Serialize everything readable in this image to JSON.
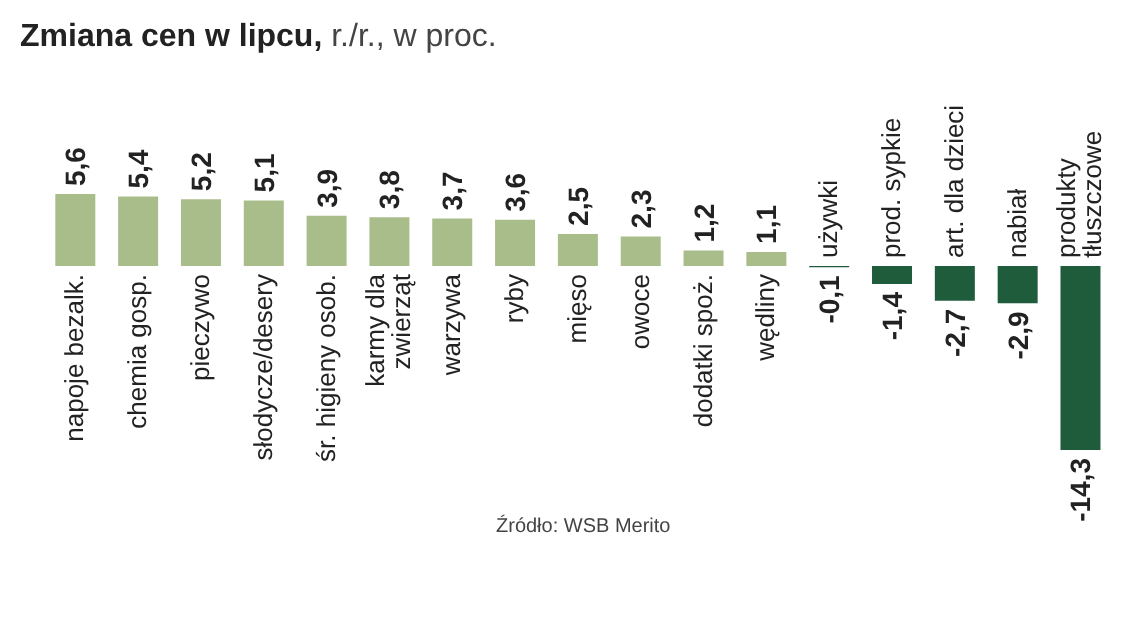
{
  "chart_data": {
    "type": "bar",
    "title": "Zmiana cen w lipcu,",
    "subtitle": "r./r., w proc.",
    "categories": [
      "napoje bezalk.",
      "chemia gosp.",
      "pieczywo",
      "słodycze/desery",
      "śr. higieny osob.",
      "karmy dla zwierząt",
      "warzywa",
      "ryby",
      "mięso",
      "owoce",
      "dodatki spoż.",
      "wędliny",
      "używki",
      "prod. sypkie",
      "art. dla dzieci",
      "nabiał",
      "produkty tłuszczowe"
    ],
    "values": [
      5.6,
      5.4,
      5.2,
      5.1,
      3.9,
      3.8,
      3.7,
      3.6,
      2.5,
      2.3,
      1.2,
      1.1,
      -0.1,
      -1.4,
      -2.7,
      -2.9,
      -14.3
    ],
    "colors": [
      "#a9bd8b",
      "#a9bd8b",
      "#a9bd8b",
      "#a9bd8b",
      "#a9bd8b",
      "#a9bd8b",
      "#a9bd8b",
      "#a9bd8b",
      "#a9bd8b",
      "#a9bd8b",
      "#a9bd8b",
      "#a9bd8b",
      "#1f5c3c",
      "#1f5c3c",
      "#1f5c3c",
      "#1f5c3c",
      "#1f5c3c"
    ],
    "value_labels": [
      "5,6",
      "5,4",
      "5,2",
      "5,1",
      "3,9",
      "3,8",
      "3,7",
      "3,6",
      "2,5",
      "2,3",
      "1,2",
      "1,1",
      "-0,1",
      "-1,4",
      "-2,7",
      "-2,9",
      "-14,3"
    ],
    "annotations": [
      "Źródło: WSB Merito"
    ]
  }
}
